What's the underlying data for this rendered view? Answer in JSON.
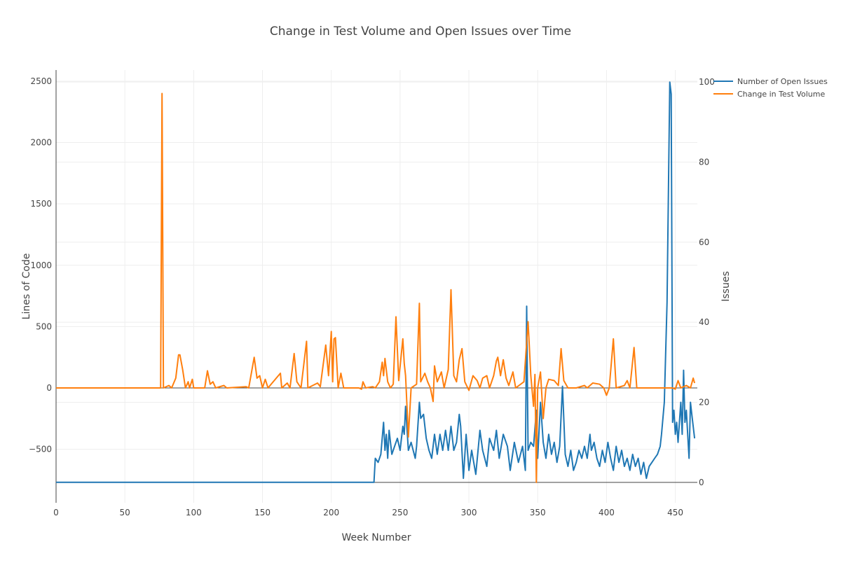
{
  "chart_data": {
    "type": "line",
    "title": "Change in Test Volume and Open Issues over Time",
    "xlabel": "Week Number",
    "ylabel": "Lines of Code",
    "y2label": "Issues",
    "xlim": [
      0,
      466
    ],
    "ylim": [
      -936,
      2591
    ],
    "y2lim": [
      -5.1,
      103
    ],
    "xticks": [
      0,
      50,
      100,
      150,
      200,
      250,
      300,
      350,
      400,
      450
    ],
    "yticks": [
      -500,
      0,
      500,
      1000,
      1500,
      2000,
      2500
    ],
    "y2ticks": [
      0,
      20,
      40,
      60,
      80,
      100
    ],
    "grid": true,
    "legend_position": "top-right",
    "series": [
      {
        "name": "Number of Open Issues",
        "axis": "right",
        "color": "#1f77b4",
        "points": [
          [
            0,
            0
          ],
          [
            231,
            0
          ],
          [
            232,
            6
          ],
          [
            234,
            5
          ],
          [
            236,
            7
          ],
          [
            238,
            15
          ],
          [
            239,
            8
          ],
          [
            240,
            12
          ],
          [
            241,
            6
          ],
          [
            242,
            13
          ],
          [
            244,
            7
          ],
          [
            246,
            9
          ],
          [
            248,
            11
          ],
          [
            250,
            8
          ],
          [
            252,
            14
          ],
          [
            253,
            12
          ],
          [
            254,
            19
          ],
          [
            256,
            8
          ],
          [
            258,
            10
          ],
          [
            261,
            6
          ],
          [
            262,
            9
          ],
          [
            264,
            20
          ],
          [
            265,
            16
          ],
          [
            267,
            17
          ],
          [
            269,
            11
          ],
          [
            271,
            8
          ],
          [
            273,
            6
          ],
          [
            275,
            12
          ],
          [
            277,
            7
          ],
          [
            279,
            12
          ],
          [
            281,
            8
          ],
          [
            283,
            13
          ],
          [
            285,
            8
          ],
          [
            287,
            14
          ],
          [
            289,
            8
          ],
          [
            291,
            10
          ],
          [
            293,
            17
          ],
          [
            294,
            14
          ],
          [
            296,
            1
          ],
          [
            298,
            12
          ],
          [
            300,
            3
          ],
          [
            302,
            8
          ],
          [
            305,
            2
          ],
          [
            308,
            13
          ],
          [
            310,
            8
          ],
          [
            313,
            4
          ],
          [
            315,
            11
          ],
          [
            318,
            8
          ],
          [
            320,
            13
          ],
          [
            322,
            6
          ],
          [
            325,
            12
          ],
          [
            328,
            9
          ],
          [
            330,
            3
          ],
          [
            333,
            10
          ],
          [
            336,
            5
          ],
          [
            339,
            9
          ],
          [
            341,
            3
          ],
          [
            342,
            44
          ],
          [
            343,
            8
          ],
          [
            345,
            10
          ],
          [
            347,
            9
          ],
          [
            349,
            18
          ],
          [
            350,
            6
          ],
          [
            352,
            20
          ],
          [
            354,
            10
          ],
          [
            356,
            6
          ],
          [
            358,
            12
          ],
          [
            360,
            7
          ],
          [
            362,
            10
          ],
          [
            364,
            5
          ],
          [
            366,
            9
          ],
          [
            368,
            24
          ],
          [
            370,
            7
          ],
          [
            372,
            4
          ],
          [
            374,
            8
          ],
          [
            376,
            3
          ],
          [
            378,
            5
          ],
          [
            380,
            8
          ],
          [
            382,
            6
          ],
          [
            384,
            9
          ],
          [
            386,
            6
          ],
          [
            388,
            12
          ],
          [
            389,
            8
          ],
          [
            391,
            10
          ],
          [
            393,
            6
          ],
          [
            395,
            4
          ],
          [
            397,
            8
          ],
          [
            399,
            5
          ],
          [
            401,
            10
          ],
          [
            403,
            6
          ],
          [
            405,
            3
          ],
          [
            407,
            9
          ],
          [
            409,
            5
          ],
          [
            411,
            8
          ],
          [
            413,
            4
          ],
          [
            415,
            6
          ],
          [
            417,
            3
          ],
          [
            419,
            7
          ],
          [
            421,
            4
          ],
          [
            423,
            6
          ],
          [
            425,
            2
          ],
          [
            427,
            5
          ],
          [
            429,
            1
          ],
          [
            431,
            4
          ],
          [
            433,
            5
          ],
          [
            435,
            6
          ],
          [
            437,
            7
          ],
          [
            439,
            9
          ],
          [
            440,
            12
          ],
          [
            442,
            20
          ],
          [
            444,
            45
          ],
          [
            446,
            100
          ],
          [
            447,
            97
          ],
          [
            448,
            15
          ],
          [
            449,
            18
          ],
          [
            450,
            12
          ],
          [
            451,
            15
          ],
          [
            452,
            10
          ],
          [
            454,
            20
          ],
          [
            455,
            12
          ],
          [
            456,
            28
          ],
          [
            457,
            15
          ],
          [
            458,
            18
          ],
          [
            460,
            6
          ],
          [
            461,
            20
          ],
          [
            462,
            17
          ],
          [
            464,
            11
          ]
        ]
      },
      {
        "name": "Change in Test Volume",
        "axis": "left",
        "color": "#ff7f0e",
        "points": [
          [
            0,
            0
          ],
          [
            76,
            0
          ],
          [
            77,
            2400
          ],
          [
            78,
            0
          ],
          [
            82,
            20
          ],
          [
            84,
            0
          ],
          [
            87,
            80
          ],
          [
            89,
            270
          ],
          [
            90,
            270
          ],
          [
            92,
            150
          ],
          [
            94,
            0
          ],
          [
            96,
            50
          ],
          [
            97,
            0
          ],
          [
            99,
            70
          ],
          [
            100,
            0
          ],
          [
            108,
            0
          ],
          [
            110,
            140
          ],
          [
            112,
            30
          ],
          [
            114,
            50
          ],
          [
            116,
            0
          ],
          [
            122,
            20
          ],
          [
            124,
            0
          ],
          [
            138,
            10
          ],
          [
            140,
            0
          ],
          [
            144,
            250
          ],
          [
            146,
            80
          ],
          [
            148,
            100
          ],
          [
            150,
            0
          ],
          [
            152,
            70
          ],
          [
            154,
            0
          ],
          [
            163,
            120
          ],
          [
            164,
            0
          ],
          [
            168,
            40
          ],
          [
            170,
            0
          ],
          [
            173,
            280
          ],
          [
            175,
            50
          ],
          [
            178,
            0
          ],
          [
            182,
            380
          ],
          [
            183,
            0
          ],
          [
            190,
            40
          ],
          [
            192,
            10
          ],
          [
            196,
            350
          ],
          [
            198,
            100
          ],
          [
            200,
            460
          ],
          [
            201,
            50
          ],
          [
            202,
            400
          ],
          [
            203,
            410
          ],
          [
            205,
            0
          ],
          [
            207,
            120
          ],
          [
            209,
            0
          ],
          [
            220,
            0
          ],
          [
            222,
            -10
          ],
          [
            223,
            50
          ],
          [
            225,
            0
          ],
          [
            230,
            10
          ],
          [
            232,
            0
          ],
          [
            235,
            50
          ],
          [
            237,
            210
          ],
          [
            238,
            100
          ],
          [
            239,
            240
          ],
          [
            241,
            50
          ],
          [
            243,
            0
          ],
          [
            245,
            30
          ],
          [
            247,
            580
          ],
          [
            249,
            60
          ],
          [
            252,
            400
          ],
          [
            253,
            200
          ],
          [
            254,
            100
          ],
          [
            256,
            -400
          ],
          [
            258,
            0
          ],
          [
            262,
            30
          ],
          [
            264,
            690
          ],
          [
            265,
            50
          ],
          [
            268,
            120
          ],
          [
            270,
            50
          ],
          [
            272,
            0
          ],
          [
            274,
            -110
          ],
          [
            275,
            180
          ],
          [
            277,
            50
          ],
          [
            280,
            130
          ],
          [
            282,
            0
          ],
          [
            285,
            150
          ],
          [
            287,
            800
          ],
          [
            289,
            100
          ],
          [
            291,
            50
          ],
          [
            293,
            230
          ],
          [
            295,
            320
          ],
          [
            297,
            50
          ],
          [
            300,
            -20
          ],
          [
            303,
            100
          ],
          [
            306,
            60
          ],
          [
            308,
            0
          ],
          [
            310,
            80
          ],
          [
            313,
            100
          ],
          [
            315,
            0
          ],
          [
            318,
            100
          ],
          [
            320,
            220
          ],
          [
            321,
            250
          ],
          [
            323,
            100
          ],
          [
            325,
            230
          ],
          [
            327,
            80
          ],
          [
            329,
            20
          ],
          [
            332,
            130
          ],
          [
            334,
            0
          ],
          [
            340,
            50
          ],
          [
            343,
            540
          ],
          [
            345,
            100
          ],
          [
            347,
            -150
          ],
          [
            348,
            110
          ],
          [
            349,
            -770
          ],
          [
            350,
            0
          ],
          [
            352,
            130
          ],
          [
            354,
            -250
          ],
          [
            356,
            0
          ],
          [
            358,
            70
          ],
          [
            362,
            60
          ],
          [
            365,
            20
          ],
          [
            367,
            320
          ],
          [
            369,
            60
          ],
          [
            372,
            0
          ],
          [
            378,
            0
          ],
          [
            384,
            20
          ],
          [
            386,
            0
          ],
          [
            390,
            40
          ],
          [
            395,
            30
          ],
          [
            398,
            0
          ],
          [
            400,
            -60
          ],
          [
            402,
            0
          ],
          [
            405,
            400
          ],
          [
            407,
            0
          ],
          [
            413,
            20
          ],
          [
            415,
            60
          ],
          [
            417,
            0
          ],
          [
            420,
            330
          ],
          [
            422,
            0
          ],
          [
            426,
            0
          ],
          [
            445,
            0
          ],
          [
            448,
            0
          ],
          [
            450,
            -10
          ],
          [
            452,
            60
          ],
          [
            454,
            0
          ],
          [
            458,
            20
          ],
          [
            461,
            0
          ],
          [
            463,
            80
          ],
          [
            464,
            40
          ]
        ]
      }
    ]
  }
}
